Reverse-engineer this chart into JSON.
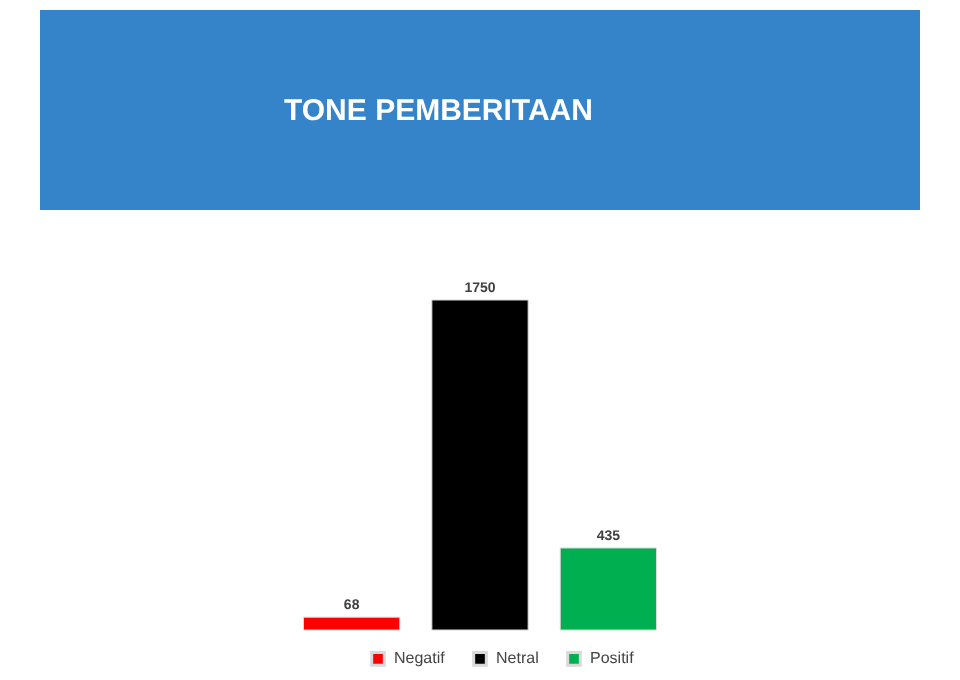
{
  "chart_data": {
    "type": "bar",
    "title": "TONE PEMBERITAAN",
    "categories": [
      null
    ],
    "series": [
      {
        "name": "Negatif",
        "color": "#ff0000",
        "values": [
          68
        ]
      },
      {
        "name": "Netral",
        "color": "#000000",
        "values": [
          1750
        ]
      },
      {
        "name": "Positif",
        "color": "#00b050",
        "values": [
          435
        ]
      }
    ],
    "data_labels": true,
    "legend": "bottom",
    "grid": false
  }
}
